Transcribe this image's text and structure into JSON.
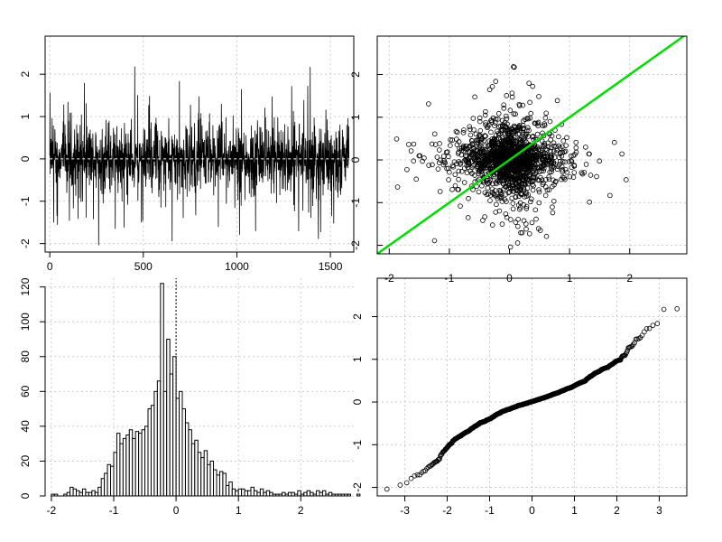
{
  "chart_data": [
    {
      "type": "line",
      "id": "time-series",
      "title": "",
      "xlabel": "",
      "ylabel": "",
      "xlim": [
        -25,
        1625
      ],
      "ylim": [
        -2.2,
        2.9
      ],
      "grid": true,
      "x_ticks": [
        0,
        500,
        1000,
        1500
      ],
      "y_ticks": [
        -2,
        -1,
        0,
        1,
        2
      ],
      "x_tick_labels": [
        "0",
        "500",
        "1000",
        "1500"
      ],
      "y_tick_labels": [
        "-2",
        "-1",
        "0",
        "1",
        "2"
      ],
      "n": 1600,
      "baseline": 0,
      "value_range": [
        -2.05,
        2.55
      ],
      "line_color": "#000000"
    },
    {
      "type": "scatter",
      "id": "lag-scatter",
      "title": "",
      "xlabel": "",
      "ylabel": "",
      "xlim": [
        -2.2,
        2.95
      ],
      "ylim": [
        -2.2,
        2.9
      ],
      "grid": true,
      "x_ticks": [
        -2,
        -1,
        0,
        1,
        2
      ],
      "y_ticks": [
        -2,
        -1,
        0,
        1,
        2
      ],
      "x_tick_labels": [
        "-2",
        "-1",
        "0",
        "1",
        "2"
      ],
      "y_tick_labels": [
        "-2",
        "-1",
        "0",
        "1",
        "2"
      ],
      "n_points": 1599,
      "marker": "open-circle",
      "regression_line": {
        "intercept": 0.0,
        "slope": 1.0,
        "color": "#00dd00"
      }
    },
    {
      "type": "bar",
      "id": "histogram",
      "title": "",
      "xlabel": "",
      "ylabel": "",
      "xlim": [
        -2.1,
        2.85
      ],
      "ylim": [
        0,
        125
      ],
      "grid": true,
      "x_ticks": [
        -2,
        -1,
        0,
        1,
        2
      ],
      "y_ticks": [
        0,
        20,
        40,
        60,
        80,
        100,
        120
      ],
      "x_tick_labels": [
        "-2",
        "-1",
        "0",
        "1",
        "2"
      ],
      "y_tick_labels": [
        "0",
        "20",
        "40",
        "60",
        "80",
        "100",
        "120"
      ],
      "bin_width": 0.05,
      "bin_start": -2.0,
      "counts": [
        1,
        1,
        0,
        0,
        1,
        2,
        5,
        4,
        3,
        2,
        4,
        2,
        2,
        3,
        2,
        5,
        10,
        13,
        18,
        17,
        25,
        36,
        30,
        33,
        35,
        38,
        33,
        37,
        36,
        38,
        40,
        50,
        52,
        60,
        66,
        122,
        60,
        90,
        70,
        80,
        56,
        60,
        50,
        42,
        38,
        30,
        32,
        25,
        22,
        26,
        18,
        20,
        15,
        12,
        14,
        13,
        6,
        8,
        4,
        3,
        4,
        4,
        3,
        3,
        5,
        3,
        2,
        4,
        2,
        3,
        2,
        1,
        1,
        1,
        2,
        1,
        2,
        2,
        1,
        3,
        1,
        2,
        3,
        2,
        1,
        3,
        2,
        3,
        1,
        2,
        1,
        1,
        1,
        1,
        1,
        1,
        0,
        0,
        1
      ],
      "reference_line_x": 0
    },
    {
      "type": "scatter",
      "id": "qq-plot",
      "title": "",
      "xlabel": "",
      "ylabel": "",
      "xlim": [
        -3.65,
        3.65
      ],
      "ylim": [
        -2.2,
        2.9
      ],
      "grid": true,
      "x_ticks": [
        -3,
        -2,
        -1,
        0,
        1,
        2,
        3
      ],
      "y_ticks": [
        -2,
        -1,
        0,
        1,
        2
      ],
      "x_tick_labels": [
        "-3",
        "-2",
        "-1",
        "0",
        "1",
        "2",
        "3"
      ],
      "y_tick_labels": [
        "-2",
        "-1",
        "0",
        "1",
        "2"
      ],
      "n_points": 1600,
      "marker": "open-circle"
    }
  ]
}
